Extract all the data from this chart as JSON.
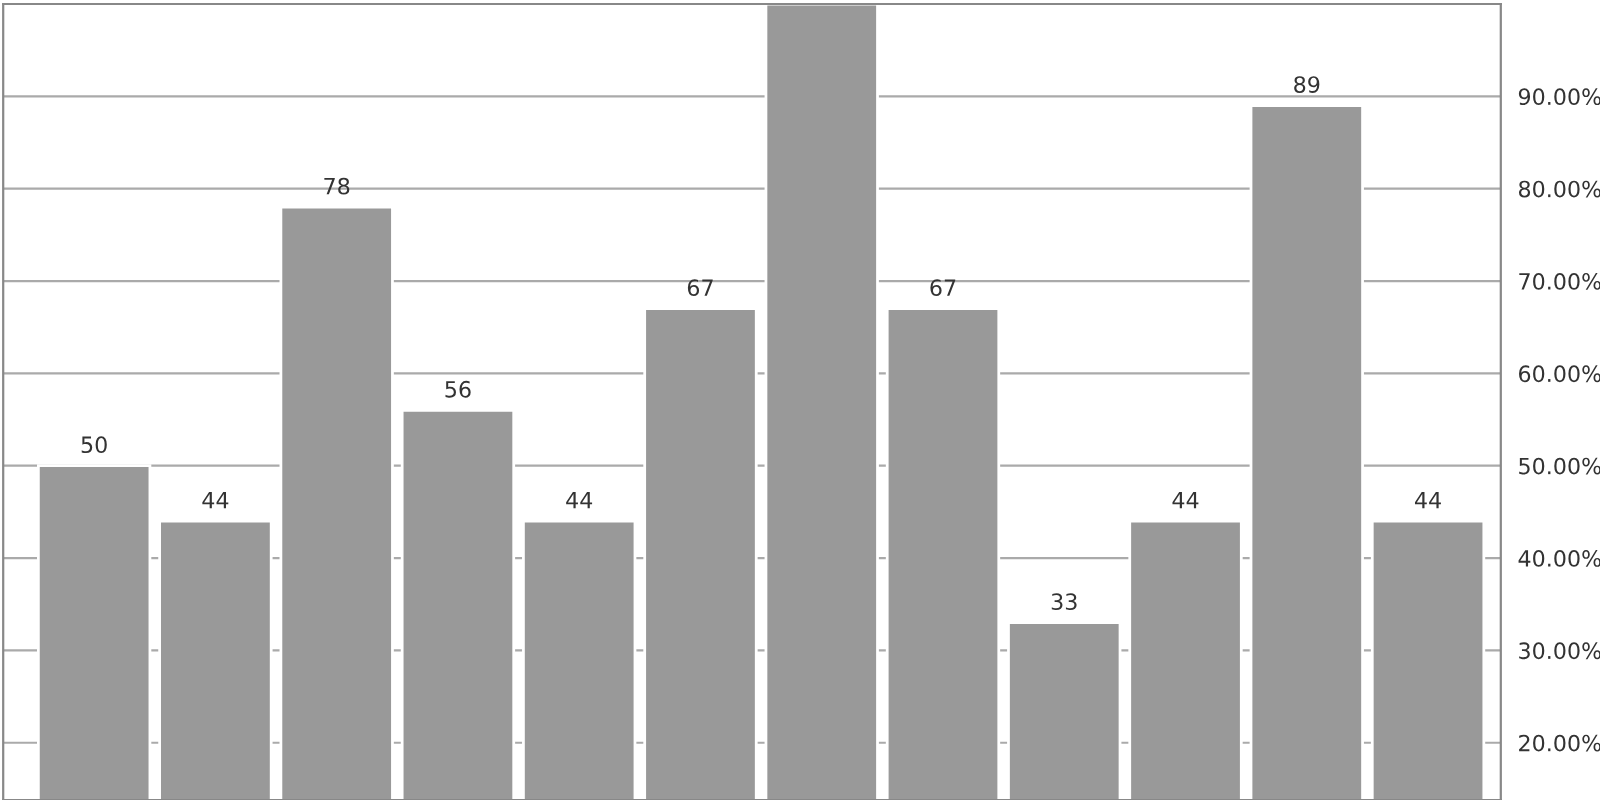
{
  "chart_data": {
    "type": "bar",
    "categories": [
      null,
      null,
      null,
      null,
      null,
      null,
      null,
      null,
      null,
      null,
      null,
      null
    ],
    "values": [
      50,
      44,
      78,
      56,
      44,
      67,
      100,
      67,
      33,
      44,
      89,
      44
    ],
    "value_labels": [
      "50",
      "44",
      "78",
      "56",
      "44",
      "67",
      null,
      "67",
      "33",
      "44",
      "89",
      "44"
    ],
    "color": "#999999",
    "ylim": [
      13.8,
      100
    ],
    "yticks": [
      {
        "value": 20,
        "label": "20.00%"
      },
      {
        "value": 30,
        "label": "30.00%"
      },
      {
        "value": 40,
        "label": "40.00%"
      },
      {
        "value": 50,
        "label": "50.00%"
      },
      {
        "value": 60,
        "label": "60.00%"
      },
      {
        "value": 70,
        "label": "70.00%"
      },
      {
        "value": 80,
        "label": "80.00%"
      },
      {
        "value": 90,
        "label": "90.00%"
      }
    ],
    "grid": "y",
    "tick_labels": "y"
  }
}
